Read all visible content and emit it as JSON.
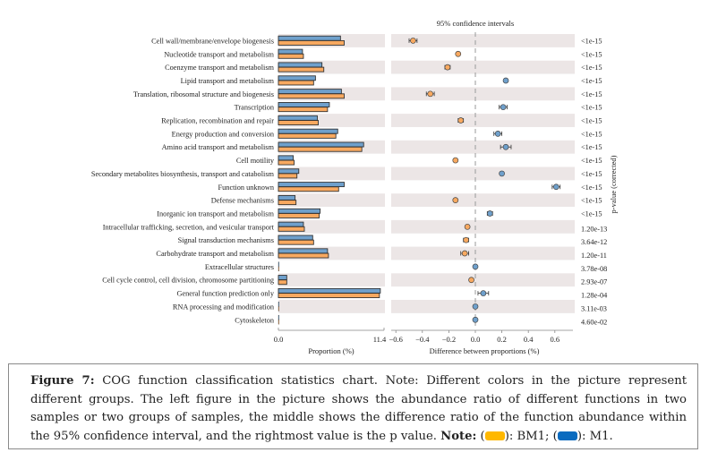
{
  "chart_data": [
    {
      "type": "bar",
      "title": "",
      "xlabel": "Proportion (%)",
      "ylabel": "",
      "xlim": [
        0.0,
        11.4
      ],
      "xticks": [
        "0.0",
        "11.4"
      ],
      "orientation": "horizontal",
      "categories": [
        "Cell wall/membrane/envelope biogenesis",
        "Nucleotide transport and metabolism",
        "Coenzyme transport and metabolism",
        "Lipid transport and metabolism",
        "Translation, ribosomal structure and biogenesis",
        "Transcription",
        "Replication, recombination and repair",
        "Energy production and conversion",
        "Amino acid transport and metabolism",
        "Cell motility",
        "Secondary metabolites biosynthesis, transport and catabolism",
        "Function unknown",
        "Defense mechanisms",
        "Inorganic ion transport and metabolism",
        "Intracellular trafficking, secretion, and vesicular transport",
        "Signal transduction mechanisms",
        "Carbohydrate transport and metabolism",
        "Extracellular structures",
        "Cell cycle control, cell division, chromosome partitioning",
        "General function prediction only",
        "RNA processing and modification",
        "Cytoskeleton"
      ],
      "series": [
        {
          "name": "M1",
          "color": "#6fa0cc",
          "values": [
            6.7,
            2.6,
            4.7,
            4.0,
            6.8,
            5.5,
            4.2,
            6.4,
            9.2,
            1.6,
            2.2,
            7.1,
            1.8,
            4.5,
            2.7,
            3.7,
            5.3,
            0.02,
            0.9,
            11.0,
            0.03,
            0.02
          ]
        },
        {
          "name": "BM1",
          "color": "#f8a960",
          "values": [
            7.1,
            2.7,
            4.9,
            3.8,
            7.1,
            5.3,
            4.3,
            6.2,
            9.0,
            1.7,
            2.0,
            6.5,
            1.9,
            4.4,
            2.8,
            3.8,
            5.4,
            0.02,
            0.9,
            10.9,
            0.03,
            0.02
          ]
        }
      ]
    },
    {
      "type": "scatter",
      "title": "95% confidence intervals",
      "xlabel": "Difference between proportions (%)",
      "xlim": [
        -0.6,
        0.75
      ],
      "xticks": [
        "-0.6",
        "-0.4",
        "-0.2",
        "0.0",
        "0.2",
        "0.4",
        "0.6"
      ],
      "reference_line": 0.0,
      "points": [
        {
          "diff": -0.47,
          "ci": 0.03,
          "group": "BM1"
        },
        {
          "diff": -0.13,
          "ci": 0.01,
          "group": "BM1"
        },
        {
          "diff": -0.21,
          "ci": 0.02,
          "group": "BM1"
        },
        {
          "diff": 0.23,
          "ci": 0.01,
          "group": "M1"
        },
        {
          "diff": -0.34,
          "ci": 0.03,
          "group": "BM1"
        },
        {
          "diff": 0.21,
          "ci": 0.03,
          "group": "M1"
        },
        {
          "diff": -0.11,
          "ci": 0.02,
          "group": "BM1"
        },
        {
          "diff": 0.17,
          "ci": 0.03,
          "group": "M1"
        },
        {
          "diff": 0.23,
          "ci": 0.04,
          "group": "M1"
        },
        {
          "diff": -0.15,
          "ci": 0.01,
          "group": "BM1"
        },
        {
          "diff": 0.2,
          "ci": 0.01,
          "group": "M1"
        },
        {
          "diff": 0.61,
          "ci": 0.03,
          "group": "M1"
        },
        {
          "diff": -0.15,
          "ci": 0.01,
          "group": "BM1"
        },
        {
          "diff": 0.11,
          "ci": 0.02,
          "group": "M1"
        },
        {
          "diff": -0.06,
          "ci": 0.01,
          "group": "BM1"
        },
        {
          "diff": -0.07,
          "ci": 0.02,
          "group": "BM1"
        },
        {
          "diff": -0.08,
          "ci": 0.03,
          "group": "BM1"
        },
        {
          "diff": 0.0,
          "ci": 0.005,
          "group": "M1"
        },
        {
          "diff": -0.03,
          "ci": 0.01,
          "group": "BM1"
        },
        {
          "diff": 0.06,
          "ci": 0.04,
          "group": "M1"
        },
        {
          "diff": 0.0,
          "ci": 0.005,
          "group": "M1"
        },
        {
          "diff": 0.0,
          "ci": 0.005,
          "group": "M1"
        }
      ]
    },
    {
      "type": "table",
      "title": "p-value (corrected)",
      "values": [
        "<1e-15",
        "<1e-15",
        "<1e-15",
        "<1e-15",
        "<1e-15",
        "<1e-15",
        "<1e-15",
        "<1e-15",
        "<1e-15",
        "<1e-15",
        "<1e-15",
        "<1e-15",
        "<1e-15",
        "<1e-15",
        "1.20e-13",
        "3.64e-12",
        "1.20e-11",
        "3.78e-08",
        "2.93e-07",
        "1.28e-04",
        "3.11e-03",
        "4.60e-02"
      ]
    }
  ],
  "colors": {
    "M1": "#6fa0cc",
    "BM1": "#f8a960",
    "stripe": "#ece6e6",
    "legend_BM1": "#ffb800",
    "legend_M1": "#0a6bbf"
  },
  "caption": {
    "label": "Figure 7:",
    "text": " COG function classification statistics chart. Note: Different colors in the picture represent different groups. The left figure in the picture shows the abundance ratio of different functions in two samples or two groups of samples, the middle shows the difference ratio of the function abundance within the 95% confidence interval, and the rightmost value is the p value. ",
    "note_label": "Note:",
    "legend_open": " (",
    "bm1_text": "): BM1; (",
    "m1_text": "): M1."
  }
}
